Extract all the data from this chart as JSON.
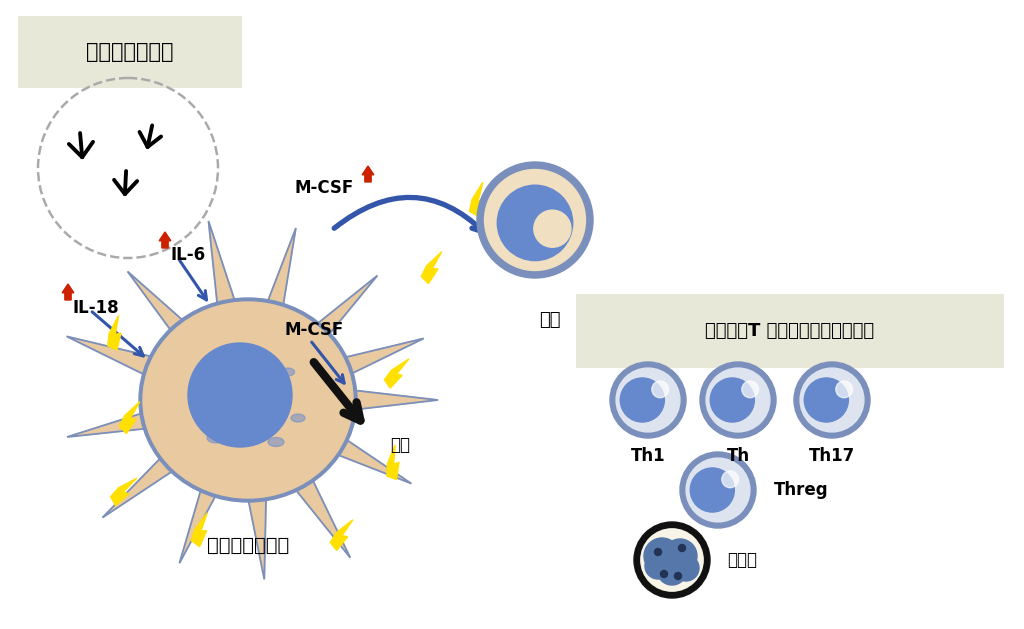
{
  "bg_color": "#ffffff",
  "fig_width": 10.24,
  "fig_height": 6.29,
  "antibody_box_text": "抗体の病原性？",
  "antibody_box_color": "#e8e8d8",
  "helper_box_text": "ヘルパーT 細胞・好中球の役割？",
  "helper_box_color": "#e8e8d8",
  "macrophage_label": "マクロファージ",
  "monocyte_label": "単球",
  "th1_label": "Th1",
  "th_label": "Th",
  "th17_label": "Th17",
  "threg_label": "Threg",
  "neutrophil_label": "好中球",
  "mcsf_label": "M-CSF",
  "mcsf2_label": "M-CSF",
  "il6_label": "IL-6",
  "il18_label": "IL-18",
  "buka_label": "分化",
  "cell_body_color": "#e8c9a0",
  "cell_outline_color": "#7a8fbb",
  "cell_nucleus_color": "#6688cc",
  "monocyte_body_color": "#f0dfc0",
  "lightning_color": "#ffe000",
  "arrow_up_color": "#cc2200",
  "arrow_blue_color": "#3355aa",
  "arrow_black_color": "#111111"
}
